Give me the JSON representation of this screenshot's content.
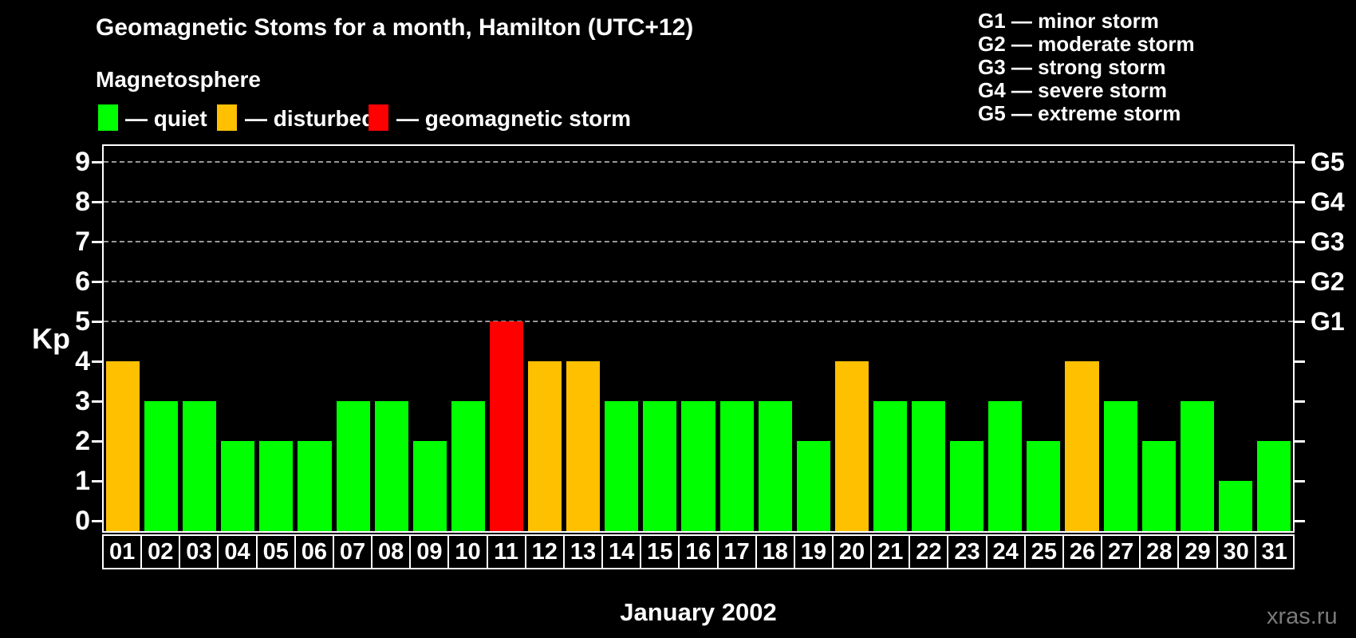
{
  "header": {
    "title": "Geomagnetic Stoms for a month, Hamilton (UTC+12)",
    "subtitle": "Magnetosphere"
  },
  "legend": {
    "items": [
      {
        "label": "— quiet",
        "state": "quiet"
      },
      {
        "label": "— disturbed",
        "state": "disturbed"
      },
      {
        "label": "— geomagnetic storm",
        "state": "storm"
      }
    ]
  },
  "g_scale_legend": [
    "G1 — minor storm",
    "G2 — moderate storm",
    "G3 — strong storm",
    "G4 — severe storm",
    "G5 — extreme storm"
  ],
  "colors": {
    "quiet": "#00ff00",
    "disturbed": "#ffc000",
    "storm": "#ff0000",
    "background": "#000000",
    "text": "#ffffff",
    "grid": "#999999",
    "watermark": "#7a7a7a"
  },
  "chart_data": {
    "type": "bar",
    "title": "Geomagnetic Stoms for a month, Hamilton (UTC+12)",
    "xlabel": "January 2002",
    "ylabel": "Kp",
    "ylim": [
      0,
      9
    ],
    "categories": [
      "01",
      "02",
      "03",
      "04",
      "05",
      "06",
      "07",
      "08",
      "09",
      "10",
      "11",
      "12",
      "13",
      "14",
      "15",
      "16",
      "17",
      "18",
      "19",
      "20",
      "21",
      "22",
      "23",
      "24",
      "25",
      "26",
      "27",
      "28",
      "29",
      "30",
      "31"
    ],
    "values": [
      4,
      3,
      3,
      2,
      2,
      2,
      3,
      3,
      2,
      3,
      5,
      4,
      4,
      3,
      3,
      3,
      3,
      3,
      2,
      4,
      3,
      3,
      2,
      3,
      2,
      4,
      3,
      2,
      3,
      1,
      2
    ],
    "states": [
      "disturbed",
      "quiet",
      "quiet",
      "quiet",
      "quiet",
      "quiet",
      "quiet",
      "quiet",
      "quiet",
      "quiet",
      "storm",
      "disturbed",
      "disturbed",
      "quiet",
      "quiet",
      "quiet",
      "quiet",
      "quiet",
      "quiet",
      "disturbed",
      "quiet",
      "quiet",
      "quiet",
      "quiet",
      "quiet",
      "disturbed",
      "quiet",
      "quiet",
      "quiet",
      "quiet",
      "quiet"
    ],
    "left_ticks": [
      0,
      1,
      2,
      3,
      4,
      5,
      6,
      7,
      8,
      9
    ],
    "gridlines_at": [
      5,
      6,
      7,
      8,
      9
    ],
    "right_axis_labels": [
      {
        "kp": 5,
        "label": "G1"
      },
      {
        "kp": 6,
        "label": "G2"
      },
      {
        "kp": 7,
        "label": "G3"
      },
      {
        "kp": 8,
        "label": "G4"
      },
      {
        "kp": 9,
        "label": "G5"
      }
    ],
    "grid": "dashed horizontal lines at storm levels only",
    "legend_position": "top"
  },
  "footer": {
    "xaxis_title": "January 2002",
    "watermark": "xras.ru"
  }
}
